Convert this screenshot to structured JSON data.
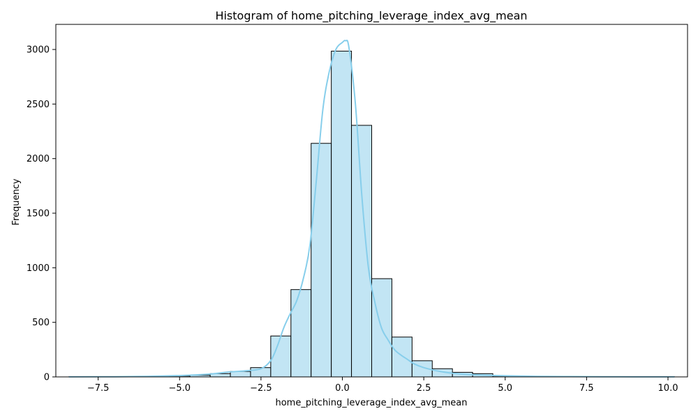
{
  "chart_data": {
    "type": "bar",
    "title": "Histogram of home_pitching_leverage_index_avg_mean",
    "xlabel": "home_pitching_leverage_index_avg_mean",
    "ylabel": "Frequency",
    "xlim": [
      -8.8,
      10.6
    ],
    "ylim": [
      0,
      3230
    ],
    "xticks": [
      -7.5,
      -5.0,
      -2.5,
      0.0,
      2.5,
      5.0,
      7.5,
      10.0
    ],
    "xtick_labels": [
      "−7.5",
      "−5.0",
      "−2.5",
      "0.0",
      "2.5",
      "5.0",
      "7.5",
      "10.0"
    ],
    "yticks": [
      0,
      500,
      1000,
      1500,
      2000,
      2500,
      3000
    ],
    "ytick_labels": [
      "0",
      "500",
      "1000",
      "1500",
      "2000",
      "2500",
      "3000"
    ],
    "bins": {
      "edges": [
        -8.4,
        -7.78,
        -7.16,
        -6.54,
        -5.92,
        -5.3,
        -4.68,
        -4.06,
        -3.44,
        -2.82,
        -2.2,
        -1.58,
        -0.96,
        -0.34,
        0.28,
        0.9,
        1.52,
        2.14,
        2.76,
        3.38,
        4.0,
        4.62,
        5.24,
        5.86,
        6.48,
        7.1,
        7.72,
        8.34,
        8.96,
        9.58,
        10.2
      ],
      "counts": [
        1,
        0,
        1,
        2,
        3,
        8,
        15,
        30,
        50,
        85,
        375,
        800,
        2140,
        2985,
        2305,
        900,
        365,
        148,
        75,
        42,
        30,
        8,
        4,
        3,
        2,
        1,
        1,
        0,
        1,
        1
      ]
    },
    "kde": {
      "x": [
        -8.4,
        -7.0,
        -6.0,
        -5.0,
        -4.5,
        -4.0,
        -3.5,
        -3.0,
        -2.5,
        -2.2,
        -2.0,
        -1.8,
        -1.6,
        -1.4,
        -1.2,
        -1.0,
        -0.8,
        -0.6,
        -0.4,
        -0.2,
        0.0,
        0.1,
        0.2,
        0.4,
        0.6,
        0.8,
        1.0,
        1.2,
        1.4,
        1.6,
        1.8,
        2.0,
        2.2,
        2.5,
        3.0,
        3.5,
        4.0,
        5.0,
        6.0,
        7.0,
        8.0,
        9.0,
        10.2
      ],
      "y": [
        1,
        2,
        5,
        12,
        18,
        28,
        45,
        55,
        75,
        150,
        280,
        450,
        580,
        700,
        900,
        1200,
        1800,
        2450,
        2800,
        3000,
        3065,
        3080,
        3020,
        2500,
        1650,
        1000,
        680,
        450,
        340,
        250,
        200,
        160,
        120,
        85,
        50,
        30,
        20,
        10,
        5,
        3,
        2,
        1,
        1
      ]
    },
    "bar_fill": "#c2e5f4",
    "bar_edge": "#000000",
    "kde_color": "#87ceeb",
    "grid": false,
    "legend": "none"
  }
}
